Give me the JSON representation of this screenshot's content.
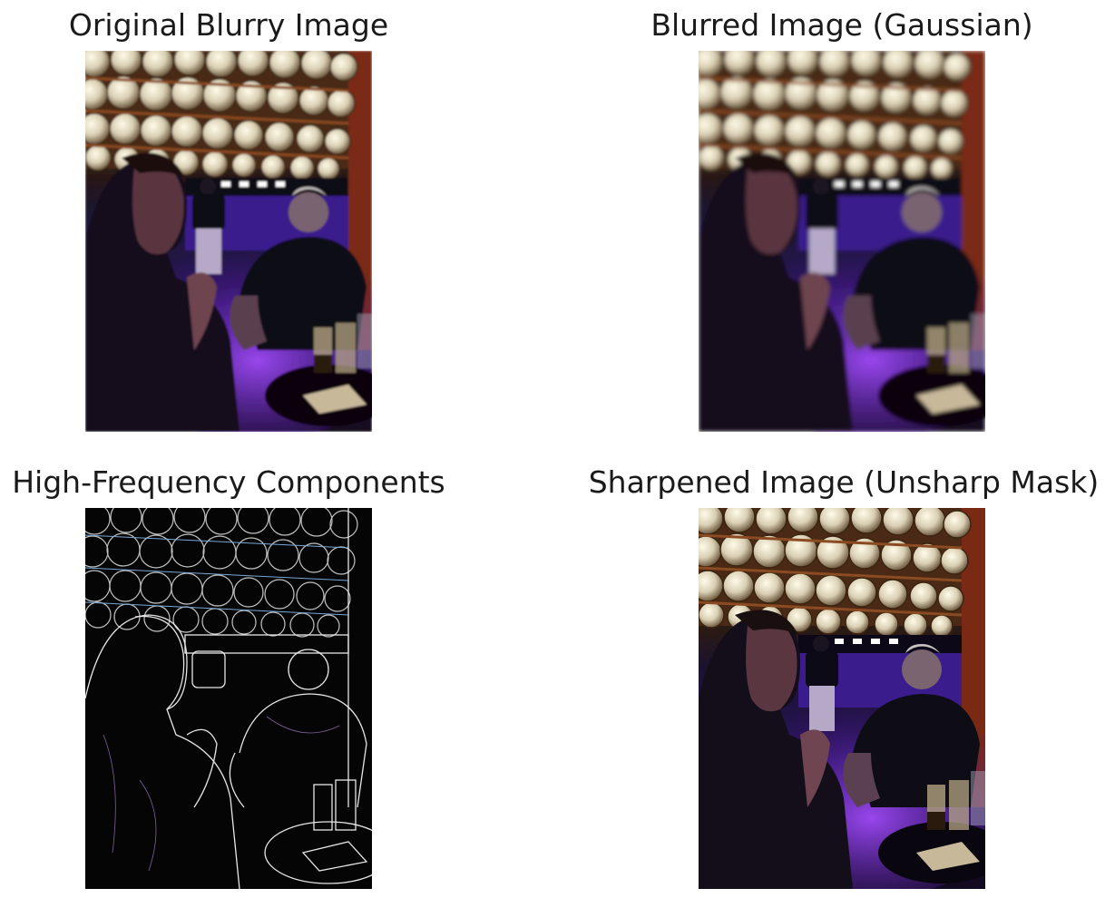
{
  "figure": {
    "panels": [
      {
        "id": "original",
        "title": "Original Blurry Image",
        "image_alt": "Two men talking at a dim bar with purple lighting, shelves of round metal kegs above"
      },
      {
        "id": "blurred",
        "title": "Blurred Image (Gaussian)",
        "image_alt": "Gaussian-blurred version of the bar scene"
      },
      {
        "id": "highfreq",
        "title": "High-Frequency Components",
        "image_alt": "Edge map of the bar scene, mostly black with thin bright outlines"
      },
      {
        "id": "sharpened",
        "title": "Sharpened Image (Unsharp Mask)",
        "image_alt": "Unsharp-mask sharpened version of the bar scene"
      }
    ]
  }
}
